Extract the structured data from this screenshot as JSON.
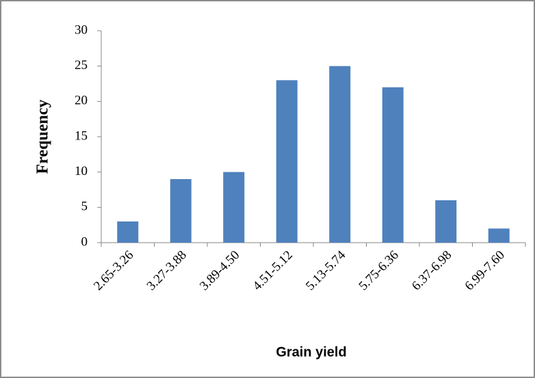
{
  "chart_data": {
    "type": "bar",
    "x_label": "Grain yield",
    "y_label": "Frequency",
    "categories": [
      "2.65-3.26",
      "3.27-3.88",
      "3.89-4.50",
      "4.51-5.12",
      "5.13-5.74",
      "5.75-6.36",
      "6.37-6.98",
      "6.99-7.60"
    ],
    "values": [
      3,
      9,
      10,
      23,
      25,
      22,
      6,
      2
    ],
    "color": "#4f81bd",
    "ylim": [
      0,
      30
    ],
    "yticks": [
      0,
      5,
      10,
      15,
      20,
      25,
      30
    ],
    "grid": false
  }
}
